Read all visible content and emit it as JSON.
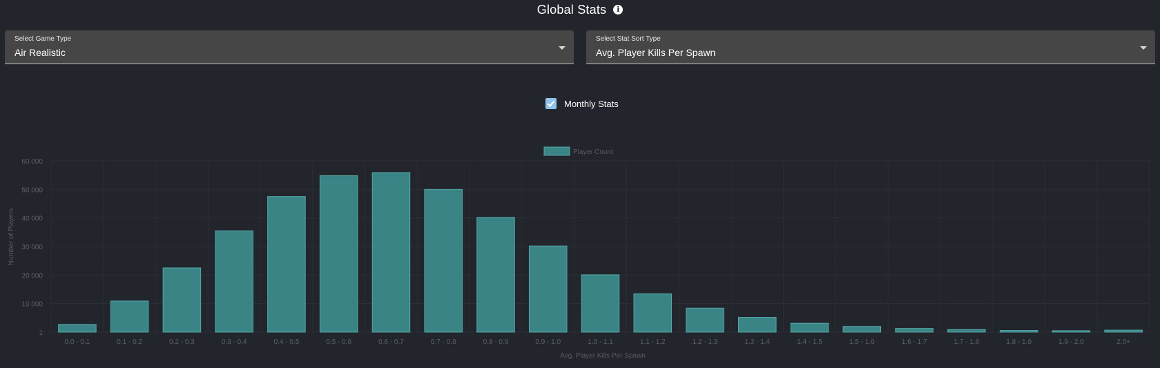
{
  "header": {
    "title": "Global Stats",
    "info_icon": "info-icon"
  },
  "filters": {
    "game_type": {
      "label": "Select Game Type",
      "value": "Air Realistic"
    },
    "stat_sort": {
      "label": "Select Stat Sort Type",
      "value": "Avg. Player Kills Per Spawn"
    }
  },
  "monthly": {
    "label": "Monthly Stats",
    "checked": true
  },
  "colors": {
    "background": "#22252b",
    "bar_fill": "#3b8486",
    "bar_border": "#54a6a8",
    "checkbox": "#8fc3ec"
  },
  "chart_data": {
    "type": "bar",
    "categories": [
      "0.0 - 0.1",
      "0.1 - 0.2",
      "0.2 - 0.3",
      "0.3 - 0.4",
      "0.4 - 0.5",
      "0.5 - 0.6",
      "0.6 - 0.7",
      "0.7 - 0.8",
      "0.8 - 0.9",
      "0.9 - 1.0",
      "1.0 - 1.1",
      "1.1 - 1.2",
      "1.2 - 1.3",
      "1.3 - 1.4",
      "1.4 - 1.5",
      "1.5 - 1.6",
      "1.6 - 1.7",
      "1.7 - 1.8",
      "1.8 - 1.9",
      "1.9 - 2.0",
      "2.0+"
    ],
    "series": [
      {
        "name": "Player Count",
        "values": [
          2700,
          10900,
          22500,
          35500,
          47500,
          54800,
          55900,
          50000,
          40200,
          30200,
          20100,
          13400,
          8400,
          5200,
          3100,
          2000,
          1300,
          900,
          600,
          500,
          700
        ]
      }
    ],
    "xlabel": "Avg. Player Kills Per Spawn",
    "ylabel": "Number of Players",
    "yticks": [
      1,
      10000,
      20000,
      30000,
      40000,
      50000,
      60000
    ],
    "ytick_labels": [
      "1",
      "10 000",
      "20 000",
      "30 000",
      "40 000",
      "50 000",
      "60 000"
    ],
    "ylim": [
      1,
      60000
    ],
    "legend_position": "top-center",
    "grid": true
  }
}
